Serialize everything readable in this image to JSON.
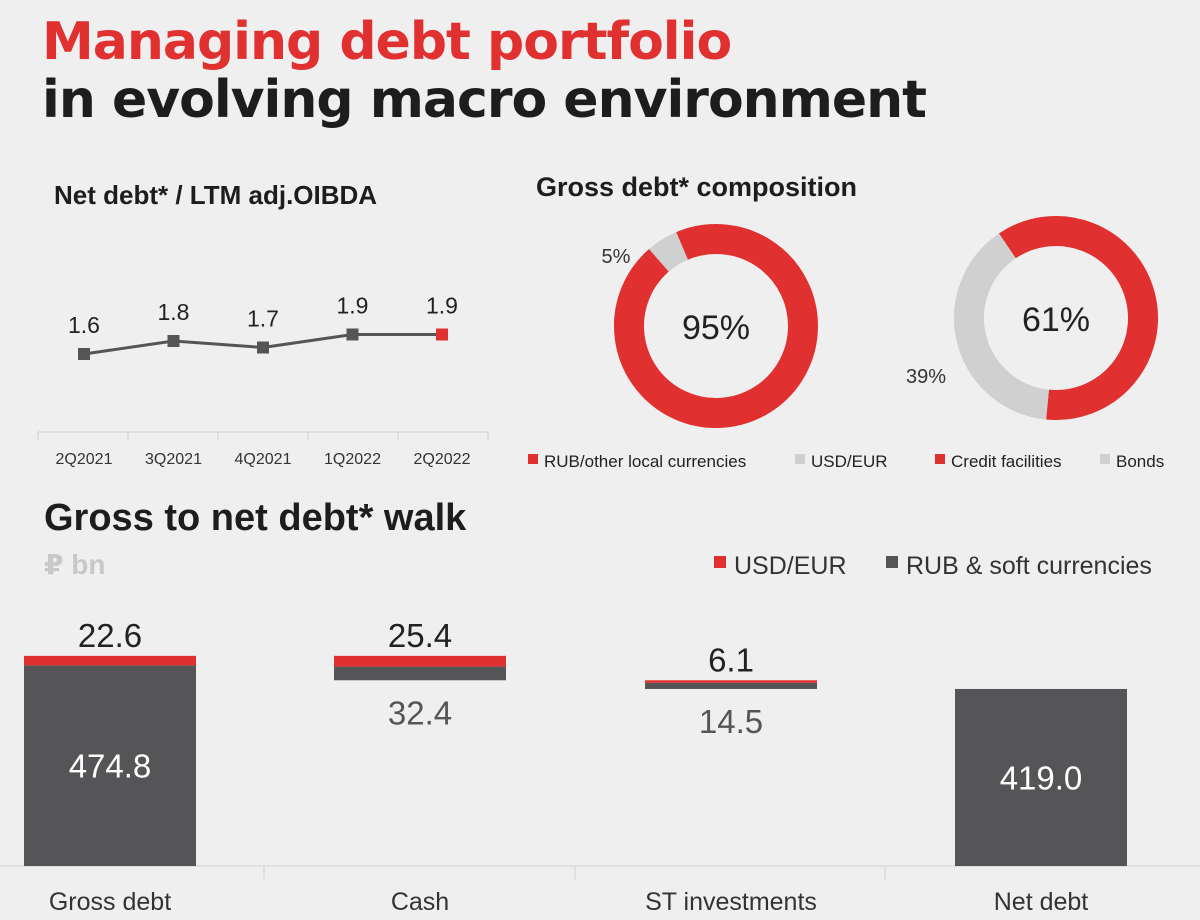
{
  "title": {
    "line1": "Managing debt portfolio",
    "line2": "in evolving macro environment",
    "accent_color": "#e03030",
    "dark_color": "#1d1d1d"
  },
  "chart_data": [
    {
      "type": "line",
      "title": "Net debt*  / LTM adj.OIBDA",
      "categories": [
        "2Q2021",
        "3Q2021",
        "4Q2021",
        "1Q2022",
        "2Q2022"
      ],
      "values": [
        1.6,
        1.8,
        1.7,
        1.9,
        1.9
      ],
      "value_labels": [
        "1.6",
        "1.8",
        "1.7",
        "1.9",
        "1.9"
      ],
      "ylim": [
        1.5,
        2.0
      ],
      "highlight_last_color": "#e03030",
      "line_color": "#555555"
    },
    {
      "type": "pie",
      "title": "Gross debt* composition",
      "donut": true,
      "slices": [
        {
          "label": "RUB/other local currencies",
          "value": 95,
          "color": "#e03030"
        },
        {
          "label": "USD/EUR",
          "value": 5,
          "color": "#d0d0d0"
        }
      ],
      "center_label": "95%",
      "outer_labels": [
        "5%"
      ]
    },
    {
      "type": "pie",
      "donut": true,
      "slices": [
        {
          "label": "Credit facilities",
          "value": 61,
          "color": "#e03030"
        },
        {
          "label": "Bonds",
          "value": 39,
          "color": "#d0d0d0"
        }
      ],
      "center_label": "61%",
      "outer_labels": [
        "39%"
      ]
    },
    {
      "type": "bar",
      "title": "Gross to net debt* walk",
      "subtitle": "₽ bn",
      "stacked": true,
      "waterfall": true,
      "categories": [
        "Gross debt",
        "Cash",
        "ST investments",
        "Net debt"
      ],
      "series": [
        {
          "name": "USD/EUR",
          "color": "#e03030",
          "values": [
            22.6,
            25.4,
            6.1,
            0
          ],
          "labels": [
            "22.6",
            "25.4",
            "6.1",
            ""
          ]
        },
        {
          "name": "RUB & soft currencies",
          "color": "#555557",
          "values": [
            474.8,
            32.4,
            14.5,
            419.0
          ],
          "labels": [
            "474.8",
            "32.4",
            "14.5",
            "419.0"
          ]
        }
      ],
      "ylim": [
        0,
        520
      ]
    }
  ]
}
